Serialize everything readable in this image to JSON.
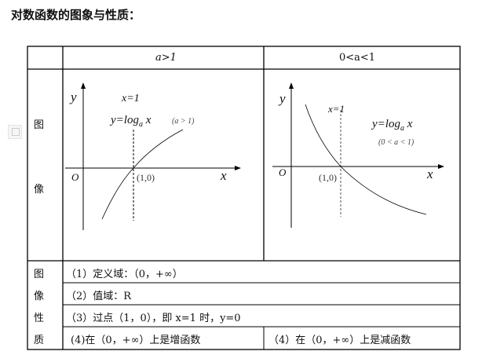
{
  "title": "对数函数的图象与性质：",
  "header": {
    "col1": "a>1",
    "col2": "0<a<1"
  },
  "row_label_graph": [
    "图",
    "像"
  ],
  "row_label_props": [
    "图",
    "像",
    "性",
    "质"
  ],
  "graph1": {
    "y_axis": "y",
    "x_axis": "x",
    "origin": "O",
    "vline": "x=1",
    "func": "y=log",
    "func_sub": "a",
    "func_var": "x",
    "cond": "(a > 1)",
    "point": "(1,0)"
  },
  "graph2": {
    "y_axis": "y",
    "x_axis": "x",
    "origin": "O",
    "vline": "x=1",
    "func": "y=log",
    "func_sub": "a",
    "func_var": "x",
    "cond": "(0 < a < 1)",
    "point": "(1,0)"
  },
  "props": {
    "p1": "（1）定义域：（0，+∞）",
    "p2": "（2）值域：R",
    "p3": "（3）过点（1，0），即 x=1 时，y=0",
    "p4a": "(4)在（0，+∞）上是增函数",
    "p4b": "（4）在（0，+∞）上是减函数"
  },
  "icons": {
    "save": "save-icon"
  }
}
